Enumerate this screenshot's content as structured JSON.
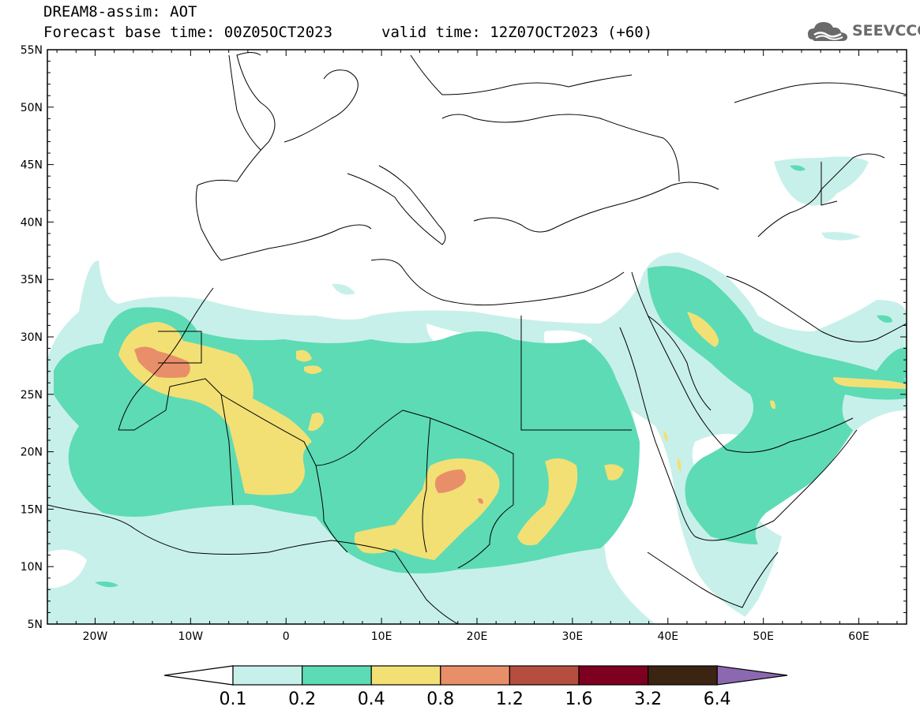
{
  "header": {
    "model_line": "DREAM8-assim: AOT",
    "base_time_line": "Forecast base time: 00Z05OCT2023",
    "valid_time_line": "valid time: 12Z07OCT2023 (+60)"
  },
  "logo": {
    "text": "SEEVCCC",
    "icon": "cloud-logo-icon"
  },
  "map": {
    "lat_labels": [
      "55N",
      "50N",
      "45N",
      "40N",
      "35N",
      "30N",
      "25N",
      "20N",
      "15N",
      "10N",
      "5N"
    ],
    "lon_labels": [
      "20W",
      "10W",
      "0",
      "10E",
      "20E",
      "30E",
      "40E",
      "50E",
      "60E"
    ],
    "lat_range": [
      5,
      55
    ],
    "lon_range": [
      -25,
      65
    ]
  },
  "colorbar": {
    "labels": [
      "0.1",
      "0.2",
      "0.4",
      "0.8",
      "1.2",
      "1.6",
      "3.2",
      "6.4"
    ],
    "colors": [
      "#ffffff",
      "#c8f0ea",
      "#5ddbb4",
      "#f2e075",
      "#e88f6a",
      "#b54e3f",
      "#7e0020",
      "#3b2412",
      "#8c68b0"
    ],
    "under_color": "#ffffff",
    "over_color": "#8c68b0"
  },
  "palette": {
    "level1": "#c8f0ea",
    "level2": "#5ddbb4",
    "level3": "#f2e075",
    "level4": "#e88f6a",
    "land": "#ffffff",
    "border": "#000000"
  }
}
